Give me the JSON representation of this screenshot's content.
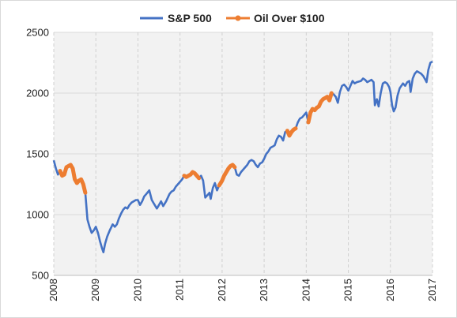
{
  "chart_data": {
    "type": "line",
    "title": "",
    "xlabel": "",
    "ylabel": "",
    "xlim": [
      2008,
      2017
    ],
    "ylim": [
      500,
      2500
    ],
    "x_ticks": [
      "2008",
      "2009",
      "2010",
      "2011",
      "2012",
      "2013",
      "2014",
      "2015",
      "2016",
      "2017"
    ],
    "y_ticks": [
      "500",
      "1000",
      "1500",
      "2000",
      "2500"
    ],
    "grid": true,
    "legend_position": "top",
    "series": [
      {
        "name": "S&P 500",
        "color": "#4472C4",
        "points": [
          [
            2008.0,
            1447
          ],
          [
            2008.05,
            1380
          ],
          [
            2008.1,
            1330
          ],
          [
            2008.15,
            1360
          ],
          [
            2008.2,
            1320
          ],
          [
            2008.25,
            1330
          ],
          [
            2008.3,
            1390
          ],
          [
            2008.35,
            1400
          ],
          [
            2008.4,
            1410
          ],
          [
            2008.45,
            1380
          ],
          [
            2008.5,
            1290
          ],
          [
            2008.55,
            1260
          ],
          [
            2008.6,
            1280
          ],
          [
            2008.65,
            1290
          ],
          [
            2008.7,
            1250
          ],
          [
            2008.75,
            1180
          ],
          [
            2008.8,
            960
          ],
          [
            2008.85,
            900
          ],
          [
            2008.9,
            850
          ],
          [
            2008.95,
            870
          ],
          [
            2009.0,
            900
          ],
          [
            2009.05,
            850
          ],
          [
            2009.1,
            780
          ],
          [
            2009.15,
            720
          ],
          [
            2009.18,
            690
          ],
          [
            2009.22,
            760
          ],
          [
            2009.27,
            820
          ],
          [
            2009.33,
            870
          ],
          [
            2009.4,
            920
          ],
          [
            2009.45,
            900
          ],
          [
            2009.5,
            920
          ],
          [
            2009.55,
            970
          ],
          [
            2009.6,
            1010
          ],
          [
            2009.65,
            1040
          ],
          [
            2009.7,
            1060
          ],
          [
            2009.75,
            1050
          ],
          [
            2009.8,
            1080
          ],
          [
            2009.85,
            1100
          ],
          [
            2009.9,
            1110
          ],
          [
            2009.95,
            1120
          ],
          [
            2010.0,
            1120
          ],
          [
            2010.05,
            1080
          ],
          [
            2010.1,
            1110
          ],
          [
            2010.15,
            1150
          ],
          [
            2010.2,
            1170
          ],
          [
            2010.27,
            1200
          ],
          [
            2010.33,
            1120
          ],
          [
            2010.38,
            1090
          ],
          [
            2010.45,
            1050
          ],
          [
            2010.5,
            1080
          ],
          [
            2010.55,
            1110
          ],
          [
            2010.6,
            1070
          ],
          [
            2010.67,
            1110
          ],
          [
            2010.75,
            1170
          ],
          [
            2010.8,
            1190
          ],
          [
            2010.85,
            1200
          ],
          [
            2010.9,
            1230
          ],
          [
            2010.95,
            1250
          ],
          [
            2011.0,
            1270
          ],
          [
            2011.05,
            1290
          ],
          [
            2011.1,
            1320
          ],
          [
            2011.15,
            1310
          ],
          [
            2011.2,
            1320
          ],
          [
            2011.25,
            1330
          ],
          [
            2011.3,
            1350
          ],
          [
            2011.35,
            1340
          ],
          [
            2011.4,
            1320
          ],
          [
            2011.45,
            1300
          ],
          [
            2011.5,
            1320
          ],
          [
            2011.55,
            1280
          ],
          [
            2011.6,
            1140
          ],
          [
            2011.65,
            1160
          ],
          [
            2011.7,
            1180
          ],
          [
            2011.73,
            1130
          ],
          [
            2011.78,
            1220
          ],
          [
            2011.83,
            1260
          ],
          [
            2011.88,
            1200
          ],
          [
            2011.93,
            1240
          ],
          [
            2012.0,
            1280
          ],
          [
            2012.05,
            1320
          ],
          [
            2012.1,
            1350
          ],
          [
            2012.15,
            1380
          ],
          [
            2012.2,
            1400
          ],
          [
            2012.25,
            1410
          ],
          [
            2012.3,
            1390
          ],
          [
            2012.35,
            1330
          ],
          [
            2012.4,
            1320
          ],
          [
            2012.45,
            1350
          ],
          [
            2012.5,
            1370
          ],
          [
            2012.55,
            1390
          ],
          [
            2012.6,
            1410
          ],
          [
            2012.65,
            1440
          ],
          [
            2012.7,
            1450
          ],
          [
            2012.75,
            1440
          ],
          [
            2012.8,
            1410
          ],
          [
            2012.85,
            1390
          ],
          [
            2012.9,
            1420
          ],
          [
            2012.95,
            1430
          ],
          [
            2013.0,
            1460
          ],
          [
            2013.05,
            1500
          ],
          [
            2013.1,
            1520
          ],
          [
            2013.15,
            1550
          ],
          [
            2013.2,
            1560
          ],
          [
            2013.25,
            1570
          ],
          [
            2013.3,
            1620
          ],
          [
            2013.35,
            1650
          ],
          [
            2013.4,
            1640
          ],
          [
            2013.45,
            1610
          ],
          [
            2013.5,
            1680
          ],
          [
            2013.55,
            1690
          ],
          [
            2013.6,
            1650
          ],
          [
            2013.65,
            1680
          ],
          [
            2013.7,
            1700
          ],
          [
            2013.75,
            1710
          ],
          [
            2013.8,
            1760
          ],
          [
            2013.85,
            1790
          ],
          [
            2013.9,
            1800
          ],
          [
            2013.95,
            1820
          ],
          [
            2014.0,
            1840
          ],
          [
            2014.05,
            1760
          ],
          [
            2014.1,
            1840
          ],
          [
            2014.15,
            1870
          ],
          [
            2014.2,
            1860
          ],
          [
            2014.25,
            1880
          ],
          [
            2014.3,
            1890
          ],
          [
            2014.35,
            1930
          ],
          [
            2014.4,
            1950
          ],
          [
            2014.45,
            1960
          ],
          [
            2014.5,
            1970
          ],
          [
            2014.55,
            1940
          ],
          [
            2014.6,
            2000
          ],
          [
            2014.65,
            1990
          ],
          [
            2014.7,
            1970
          ],
          [
            2014.75,
            1920
          ],
          [
            2014.8,
            2010
          ],
          [
            2014.85,
            2060
          ],
          [
            2014.9,
            2070
          ],
          [
            2014.95,
            2050
          ],
          [
            2015.0,
            2020
          ],
          [
            2015.05,
            2060
          ],
          [
            2015.1,
            2100
          ],
          [
            2015.15,
            2080
          ],
          [
            2015.2,
            2090
          ],
          [
            2015.3,
            2100
          ],
          [
            2015.35,
            2120
          ],
          [
            2015.4,
            2110
          ],
          [
            2015.45,
            2090
          ],
          [
            2015.5,
            2100
          ],
          [
            2015.55,
            2110
          ],
          [
            2015.6,
            2090
          ],
          [
            2015.63,
            1900
          ],
          [
            2015.68,
            1950
          ],
          [
            2015.72,
            1890
          ],
          [
            2015.77,
            2000
          ],
          [
            2015.82,
            2080
          ],
          [
            2015.87,
            2090
          ],
          [
            2015.92,
            2080
          ],
          [
            2015.97,
            2050
          ],
          [
            2016.0,
            2010
          ],
          [
            2016.04,
            1900
          ],
          [
            2016.08,
            1850
          ],
          [
            2016.12,
            1880
          ],
          [
            2016.17,
            1980
          ],
          [
            2016.22,
            2040
          ],
          [
            2016.3,
            2080
          ],
          [
            2016.35,
            2060
          ],
          [
            2016.4,
            2090
          ],
          [
            2016.45,
            2100
          ],
          [
            2016.48,
            2010
          ],
          [
            2016.53,
            2120
          ],
          [
            2016.58,
            2160
          ],
          [
            2016.63,
            2180
          ],
          [
            2016.68,
            2170
          ],
          [
            2016.73,
            2160
          ],
          [
            2016.78,
            2140
          ],
          [
            2016.83,
            2110
          ],
          [
            2016.86,
            2090
          ],
          [
            2016.9,
            2190
          ],
          [
            2016.95,
            2250
          ],
          [
            2017.0,
            2260
          ]
        ]
      },
      {
        "name": "Oil Over $100",
        "color": "#ED7D31",
        "segments": [
          [
            [
              2008.15,
              1360
            ],
            [
              2008.2,
              1320
            ],
            [
              2008.25,
              1330
            ],
            [
              2008.3,
              1390
            ],
            [
              2008.35,
              1400
            ],
            [
              2008.4,
              1410
            ],
            [
              2008.45,
              1380
            ],
            [
              2008.5,
              1290
            ],
            [
              2008.55,
              1260
            ],
            [
              2008.6,
              1280
            ],
            [
              2008.65,
              1290
            ],
            [
              2008.7,
              1250
            ],
            [
              2008.75,
              1180
            ]
          ],
          [
            [
              2011.1,
              1320
            ],
            [
              2011.15,
              1310
            ],
            [
              2011.2,
              1320
            ],
            [
              2011.25,
              1330
            ],
            [
              2011.3,
              1350
            ],
            [
              2011.35,
              1340
            ],
            [
              2011.4,
              1320
            ],
            [
              2011.45,
              1300
            ]
          ],
          [
            [
              2011.93,
              1240
            ],
            [
              2012.0,
              1280
            ],
            [
              2012.05,
              1320
            ],
            [
              2012.1,
              1350
            ],
            [
              2012.15,
              1380
            ],
            [
              2012.2,
              1400
            ],
            [
              2012.25,
              1410
            ],
            [
              2012.3,
              1390
            ]
          ],
          [
            [
              2013.55,
              1690
            ],
            [
              2013.6,
              1650
            ],
            [
              2013.65,
              1680
            ],
            [
              2013.7,
              1700
            ],
            [
              2013.75,
              1710
            ]
          ],
          [
            [
              2014.05,
              1760
            ],
            [
              2014.1,
              1840
            ],
            [
              2014.15,
              1870
            ],
            [
              2014.2,
              1860
            ],
            [
              2014.25,
              1880
            ],
            [
              2014.3,
              1890
            ],
            [
              2014.35,
              1930
            ],
            [
              2014.4,
              1950
            ],
            [
              2014.45,
              1960
            ],
            [
              2014.5,
              1970
            ],
            [
              2014.55,
              1940
            ],
            [
              2014.6,
              2000
            ]
          ]
        ]
      }
    ]
  }
}
